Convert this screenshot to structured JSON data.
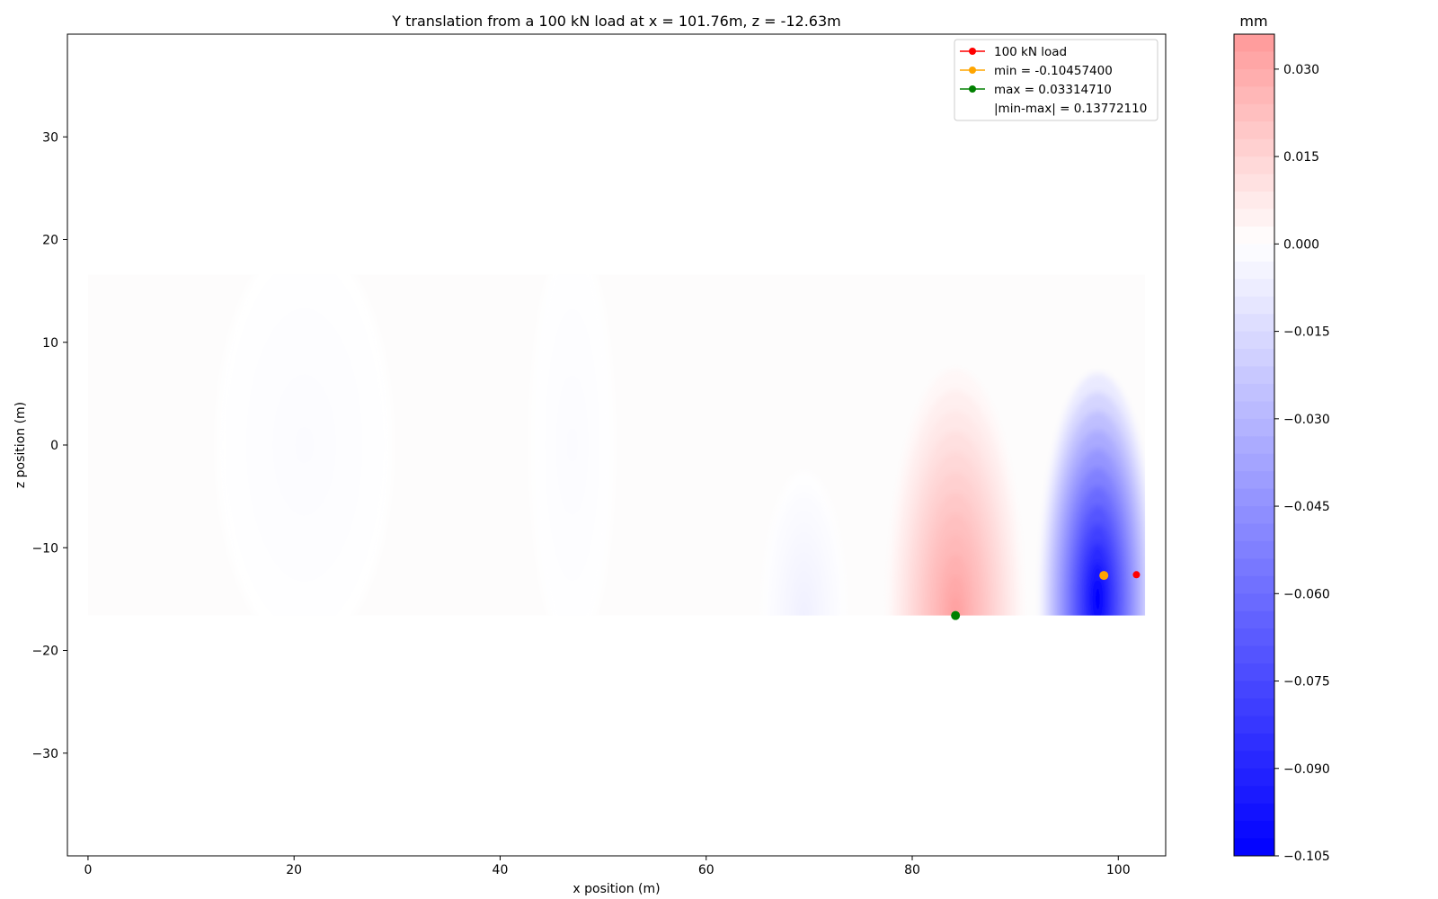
{
  "chart_data": {
    "type": "heatmap",
    "title": "Y translation from a 100 kN load at x = 101.76m, z = -12.63m",
    "xlabel": "x position (m)",
    "ylabel": "z position (m)",
    "xlim": [
      -2,
      104.6
    ],
    "ylim": [
      -40,
      40
    ],
    "x_ticks": [
      0,
      20,
      40,
      60,
      80,
      100
    ],
    "y_ticks": [
      -30,
      -20,
      -10,
      0,
      10,
      20,
      30
    ],
    "y_tick_labels": [
      "−30",
      "−20",
      "−10",
      "0",
      "10",
      "20",
      "30"
    ],
    "deck_extent": {
      "x": [
        0,
        102.6
      ],
      "z": [
        -16.6,
        16.6
      ]
    },
    "colormap": {
      "low": "#0000ff",
      "mid": "#ffffff",
      "high": "#ff9999"
    },
    "colorbar": {
      "label": "mm",
      "range": [
        -0.105,
        0.036
      ],
      "ticks": [
        0.03,
        0.015,
        0.0,
        -0.015,
        -0.03,
        -0.045,
        -0.06,
        -0.075,
        -0.09,
        -0.105
      ],
      "tick_labels": [
        "0.030",
        "0.015",
        "0.000",
        "−0.015",
        "−0.030",
        "−0.045",
        "−0.060",
        "−0.075",
        "−0.090",
        "−0.105"
      ]
    },
    "regions": [
      {
        "x_center": 98.0,
        "z_center": -15.0,
        "x_radius": 5.5,
        "z_radius": 22.0,
        "value": -0.105
      },
      {
        "x_center": 84.2,
        "z_center": -16.6,
        "x_radius": 6.5,
        "z_radius": 24.0,
        "value": 0.0331
      },
      {
        "x_center": 69.5,
        "z_center": -16.6,
        "x_radius": 4.0,
        "z_radius": 14.0,
        "value": -0.006
      },
      {
        "x_center": 47.0,
        "z_center": 0.0,
        "x_radius": 4.0,
        "z_radius": 20.0,
        "value": -0.0015
      },
      {
        "x_center": 21.0,
        "z_center": 0.0,
        "x_radius": 8.5,
        "z_radius": 20.0,
        "value": -0.0015
      }
    ],
    "markers": [
      {
        "name": "100 kN load",
        "x": 101.76,
        "z": -12.63,
        "color": "#ff0000"
      },
      {
        "name": "min = -0.10457400",
        "x": 98.6,
        "z": -12.7,
        "color": "#ffa500"
      },
      {
        "name": "max = 0.03314710",
        "x": 84.2,
        "z": -16.6,
        "color": "#008000"
      }
    ],
    "legend": {
      "placement": "top-right",
      "entries": [
        {
          "label": "100 kN load",
          "color": "#ff0000"
        },
        {
          "label": "min = -0.10457400",
          "color": "#ffa500"
        },
        {
          "label": "max = 0.03314710",
          "color": "#008000"
        },
        {
          "label": "|min-max| = 0.13772110",
          "color": ""
        }
      ]
    }
  }
}
